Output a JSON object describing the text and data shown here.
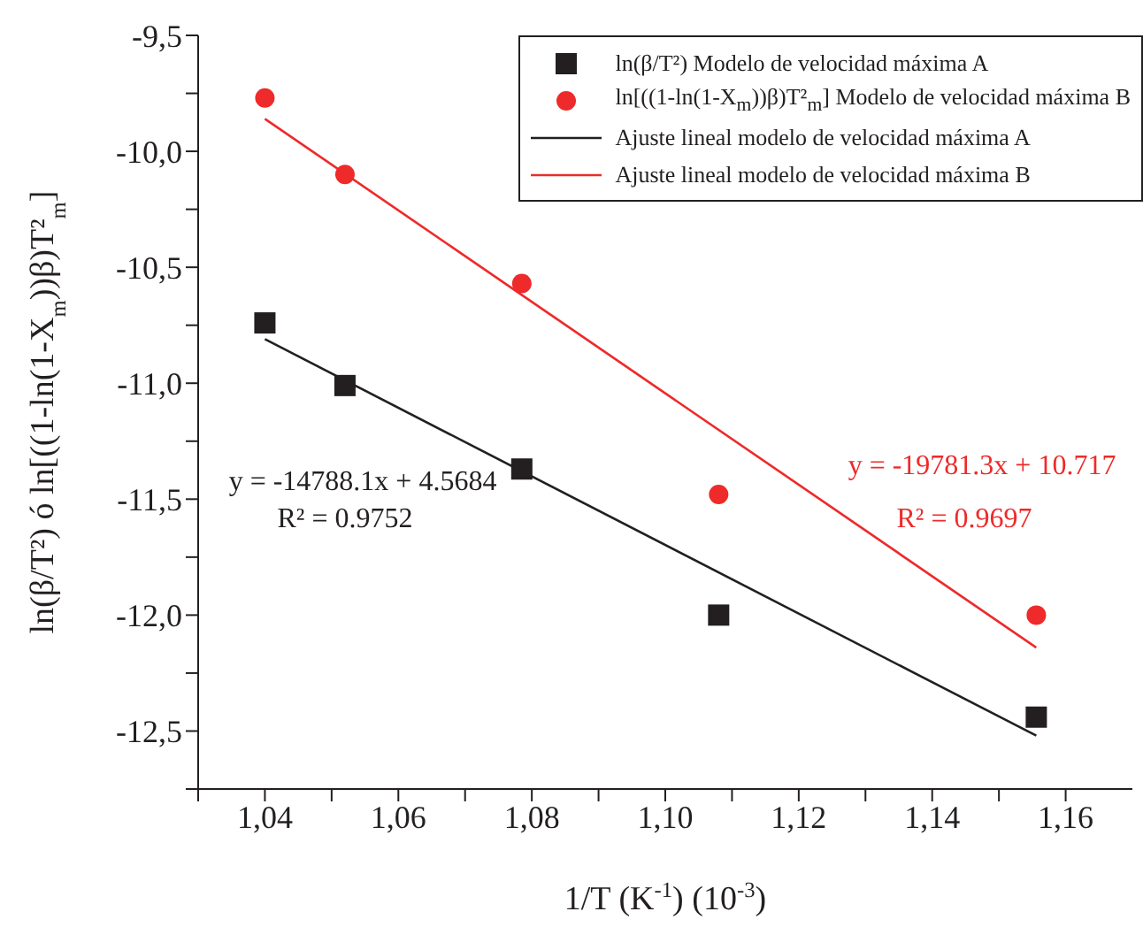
{
  "chart_data": {
    "type": "scatter",
    "xlabel": "1/T (K$^{-1}$) (10$^{-3}$)",
    "ylabel": "ln(β/T²) ó ln[((1-ln(1-X$_{m}$))β)T²$_{m}$]",
    "xlim": [
      1.03,
      1.17
    ],
    "ylim": [
      -12.75,
      -9.5
    ],
    "xticks": [
      {
        "value": 1.03,
        "label": null
      },
      {
        "value": 1.04,
        "label": "1,04"
      },
      {
        "value": 1.05,
        "label": null
      },
      {
        "value": 1.06,
        "label": "1,06"
      },
      {
        "value": 1.07,
        "label": null
      },
      {
        "value": 1.08,
        "label": "1,08"
      },
      {
        "value": 1.09,
        "label": null
      },
      {
        "value": 1.1,
        "label": "1,10"
      },
      {
        "value": 1.11,
        "label": null
      },
      {
        "value": 1.12,
        "label": "1,12"
      },
      {
        "value": 1.13,
        "label": null
      },
      {
        "value": 1.14,
        "label": "1,14"
      },
      {
        "value": 1.15,
        "label": null
      },
      {
        "value": 1.16,
        "label": "1,16"
      }
    ],
    "yticks": [
      {
        "value": -9.5,
        "label": "-9,5"
      },
      {
        "value": -9.75,
        "label": null
      },
      {
        "value": -10,
        "label": "-10,0"
      },
      {
        "value": -10.25,
        "label": null
      },
      {
        "value": -10.5,
        "label": "-10,5"
      },
      {
        "value": -10.75,
        "label": null
      },
      {
        "value": -11,
        "label": "-11,0"
      },
      {
        "value": -11.25,
        "label": null
      },
      {
        "value": -11.5,
        "label": "-11,5"
      },
      {
        "value": -11.75,
        "label": null
      },
      {
        "value": -12,
        "label": "-12,0"
      },
      {
        "value": -12.25,
        "label": null
      },
      {
        "value": -12.5,
        "label": "-12,5"
      },
      {
        "value": -12.75,
        "label": null
      }
    ],
    "grid": false,
    "legend": "top right",
    "series": [
      {
        "name": "ln(β/T²) Modelo de velocidad máxima A",
        "color": "#231f20",
        "marker": "square",
        "x": [
          1.04,
          1.052,
          1.0785,
          1.108,
          1.1556
        ],
        "values": [
          -10.74,
          -11.01,
          -11.37,
          -12.0,
          -12.44
        ]
      },
      {
        "name": "ln[((1-ln(1-X$_{m}$))β)T²$_{m}$] Modelo de velocidad máxima B",
        "color": "#ee2a2a",
        "marker": "circle",
        "x": [
          1.04,
          1.052,
          1.0785,
          1.108,
          1.1556
        ],
        "values": [
          -9.77,
          -10.1,
          -10.57,
          -11.48,
          -12.0
        ]
      },
      {
        "type": "line",
        "name": "Ajuste lineal modelo de velocidad máxima A",
        "color": "#231f20",
        "marker": "none",
        "line_style": "solid",
        "x": [
          1.04,
          1.1556
        ],
        "values": [
          -10.81,
          -12.52
        ]
      },
      {
        "type": "line",
        "name": "Ajuste lineal modelo de velocidad máxima B",
        "color": "#ee2a2a",
        "marker": "none",
        "line_style": "solid",
        "x": [
          1.04,
          1.1556
        ],
        "values": [
          -9.86,
          -12.14
        ]
      }
    ],
    "annotations": [
      "y = -14788.1x + 4.5684",
      "R² = 0.9752",
      "y = -19781.3x + 10.717",
      "R² = 0.9697"
    ]
  }
}
